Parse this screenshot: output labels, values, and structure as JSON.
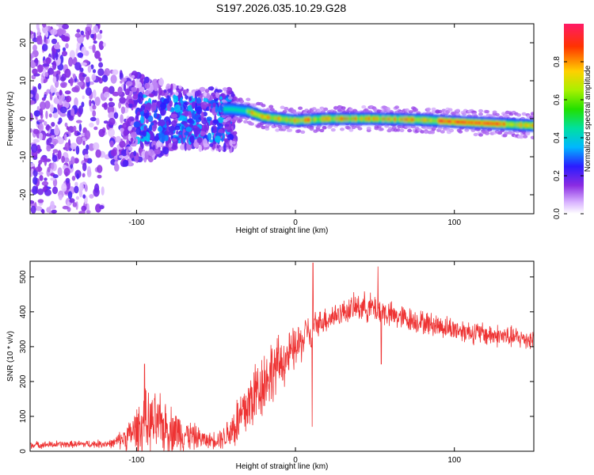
{
  "title": "S197.2026.035.10.29.G28",
  "colors": {
    "snr_line": "#ee3333",
    "axis": "#000000"
  },
  "chart_data": [
    {
      "type": "heatmap",
      "xlabel": "Height of straight line (km)",
      "ylabel": "Frequency (Hz)",
      "xlim": [
        -167,
        150
      ],
      "ylim": [
        -25,
        25
      ],
      "x_ticks": [
        {
          "value": -100,
          "label": "-100"
        },
        {
          "value": 0,
          "label": "0"
        },
        {
          "value": 100,
          "label": "100"
        }
      ],
      "y_ticks": [
        {
          "value": 20,
          "label": "20"
        },
        {
          "value": 10,
          "label": "10"
        },
        {
          "value": 0,
          "label": "0"
        },
        {
          "value": -10,
          "label": "-10"
        },
        {
          "value": -20,
          "label": "-20"
        }
      ],
      "ridge": {
        "description_points": [
          {
            "x": -40,
            "y": 2.5
          },
          {
            "x": -30,
            "y": 2.0
          },
          {
            "x": -20,
            "y": 0.5
          },
          {
            "x": -10,
            "y": 0.0
          },
          {
            "x": 0,
            "y": -0.5
          },
          {
            "x": 20,
            "y": 0.0
          },
          {
            "x": 50,
            "y": 0.0
          },
          {
            "x": 80,
            "y": -0.3
          },
          {
            "x": 100,
            "y": -0.8
          },
          {
            "x": 120,
            "y": -1.2
          },
          {
            "x": 150,
            "y": -1.8
          }
        ]
      },
      "colorbar": {
        "label": "Normalized spectral amplitude",
        "range": [
          0,
          1
        ],
        "ticks": [
          {
            "value": 0.0,
            "label": "0.0"
          },
          {
            "value": 0.2,
            "label": "0.2"
          },
          {
            "value": 0.4,
            "label": "0.4"
          },
          {
            "value": 0.6,
            "label": "0.6"
          },
          {
            "value": 0.8,
            "label": "0.8"
          }
        ]
      }
    },
    {
      "type": "line",
      "xlabel": "Height of straight line (km)",
      "ylabel": "SNR (10 * v/v)",
      "xlim": [
        -167,
        150
      ],
      "ylim": [
        0,
        545
      ],
      "x_ticks": [
        {
          "value": -100,
          "label": "-100"
        },
        {
          "value": 0,
          "label": "0"
        },
        {
          "value": 100,
          "label": "100"
        }
      ],
      "y_ticks": [
        {
          "value": 0,
          "label": "0"
        },
        {
          "value": 100,
          "label": "100"
        },
        {
          "value": 200,
          "label": "200"
        },
        {
          "value": 300,
          "label": "300"
        },
        {
          "value": 400,
          "label": "400"
        },
        {
          "value": 500,
          "label": "500"
        }
      ],
      "envelope": {
        "x": [
          -167,
          -140,
          -115,
          -105,
          -95,
          -85,
          -70,
          -55,
          -45,
          -35,
          -25,
          -15,
          -5,
          5,
          8,
          10,
          12,
          15,
          20,
          30,
          40,
          50,
          55,
          60,
          80,
          100,
          120,
          150
        ],
        "base": [
          18,
          20,
          22,
          45,
          80,
          75,
          50,
          30,
          40,
          90,
          170,
          230,
          270,
          320,
          360,
          300,
          360,
          370,
          380,
          400,
          415,
          410,
          400,
          390,
          370,
          350,
          335,
          320
        ],
        "amp": [
          12,
          12,
          15,
          50,
          110,
          100,
          60,
          25,
          40,
          110,
          120,
          110,
          80,
          70,
          40,
          40,
          50,
          40,
          50,
          40,
          50,
          50,
          50,
          45,
          40,
          40,
          40,
          35
        ]
      },
      "spikes": [
        {
          "x": 11.0,
          "value": 540
        },
        {
          "x": 10.5,
          "value": 70
        },
        {
          "x": 52.0,
          "value": 530
        },
        {
          "x": 54.0,
          "value": 250
        },
        {
          "x": -95.0,
          "value": 250
        }
      ]
    }
  ]
}
